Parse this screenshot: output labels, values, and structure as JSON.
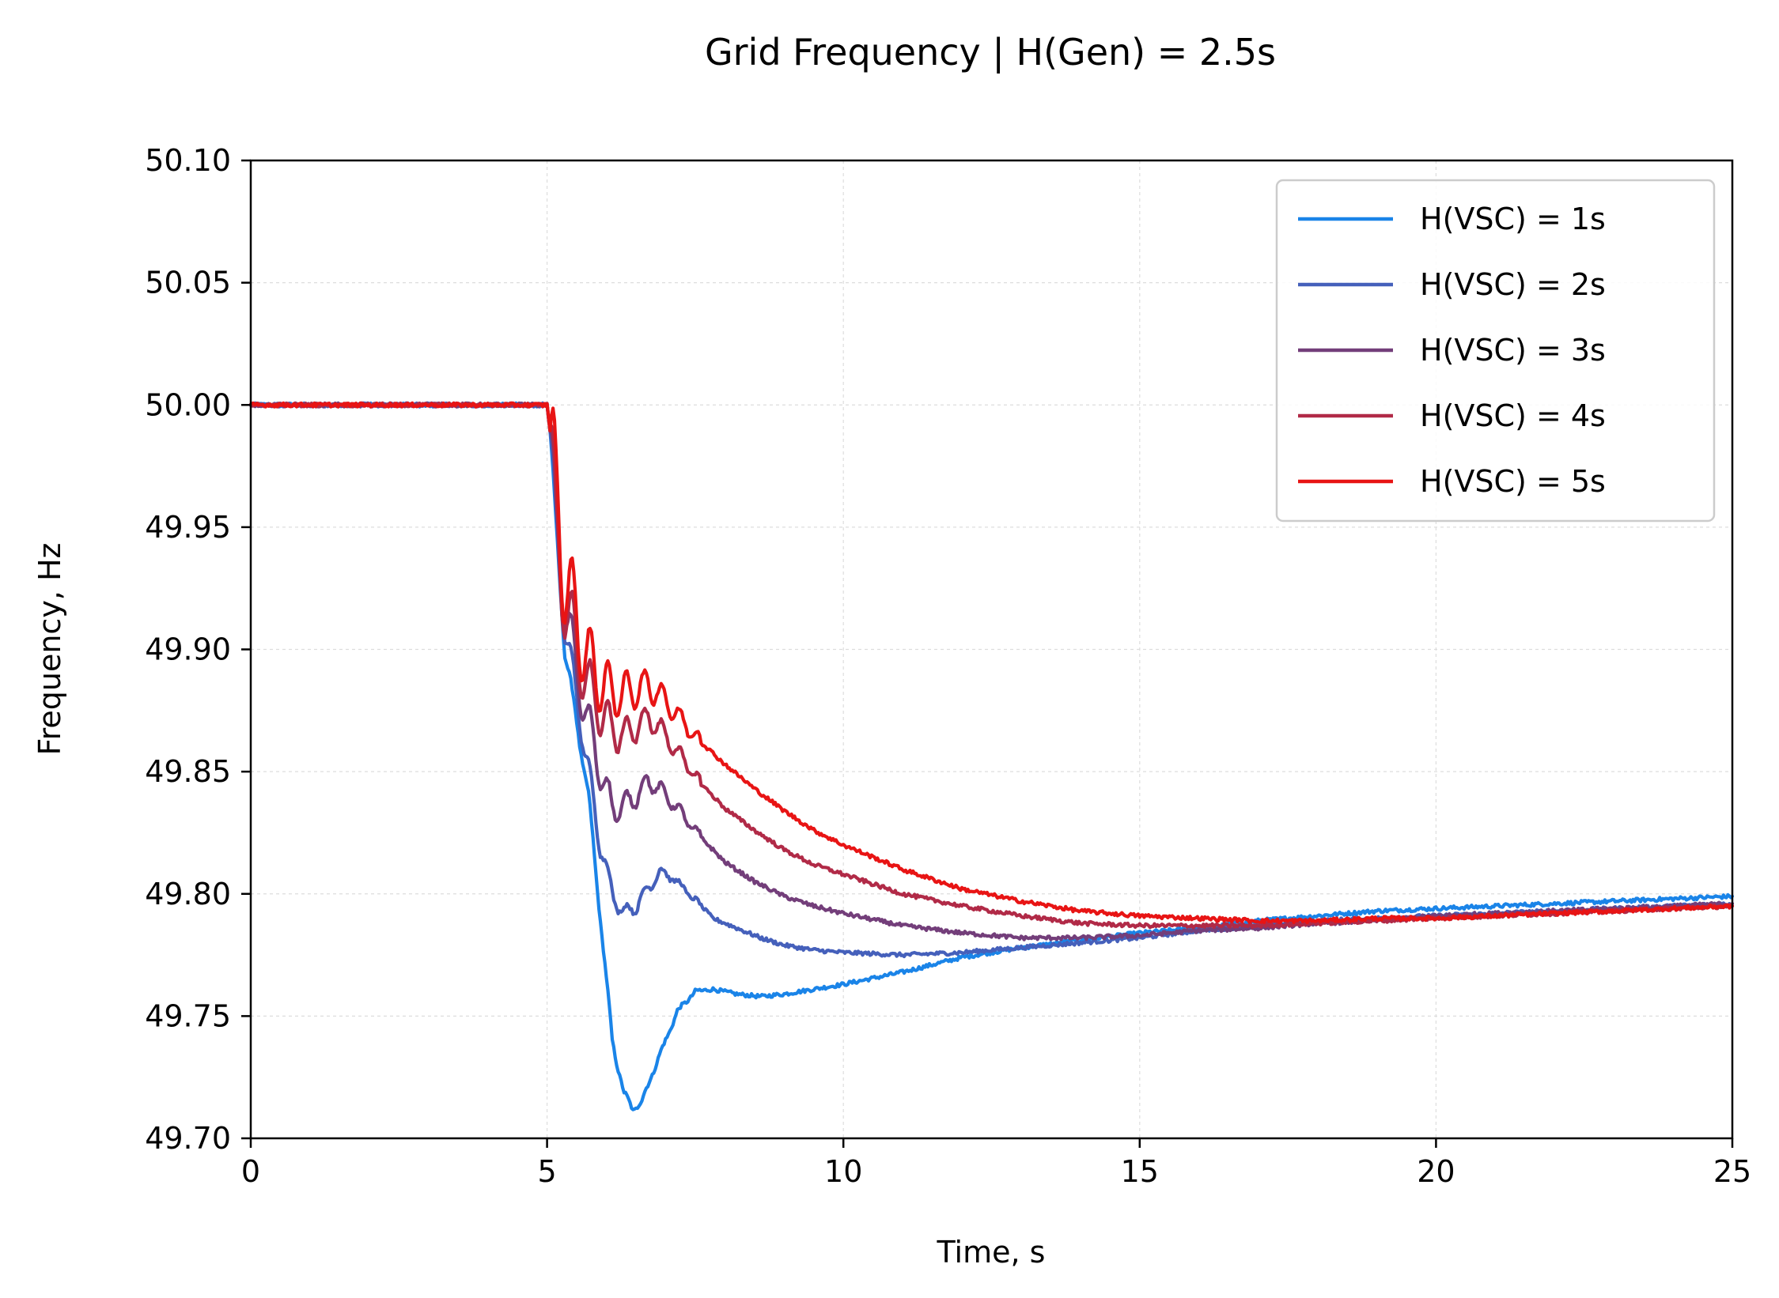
{
  "chart_data": {
    "type": "line",
    "title": "Grid Frequency  |  H(Gen) = 2.5s",
    "xlabel": "Time, s",
    "ylabel": "Frequency, Hz",
    "xlim": [
      0,
      25
    ],
    "ylim": [
      49.7,
      50.1
    ],
    "x_ticks": [
      0,
      5,
      10,
      15,
      20,
      25
    ],
    "x_tick_labels": [
      "0",
      "5",
      "10",
      "15",
      "20",
      "25"
    ],
    "y_ticks": [
      49.7,
      49.75,
      49.8,
      49.85,
      49.9,
      49.95,
      50.0,
      50.05,
      50.1
    ],
    "y_tick_labels": [
      "49.70",
      "49.75",
      "49.80",
      "49.85",
      "49.90",
      "49.95",
      "50.00",
      "50.05",
      "50.10"
    ],
    "grid": true,
    "legend_position": "top-right",
    "series": [
      {
        "name": "H(VSC) = 1s",
        "color": "#1a84e8",
        "x": [
          0,
          1,
          2,
          3,
          4,
          5,
          5.05,
          5.15,
          5.3,
          5.5,
          5.7,
          5.9,
          6.1,
          6.3,
          6.45,
          6.6,
          6.8,
          7.0,
          7.2,
          7.5,
          7.8,
          8.2,
          8.6,
          9.0,
          9.5,
          10,
          11,
          12,
          13,
          14,
          15,
          16,
          17,
          18,
          19,
          20,
          21,
          22,
          23,
          24,
          25
        ],
        "y": [
          50.0,
          50.0,
          50.0,
          50.0,
          50.0,
          50.0,
          49.99,
          49.95,
          49.9,
          49.87,
          49.84,
          49.79,
          49.74,
          49.718,
          49.712,
          49.715,
          49.728,
          49.74,
          49.752,
          49.76,
          49.761,
          49.759,
          49.758,
          49.759,
          49.761,
          49.763,
          49.768,
          49.774,
          49.778,
          49.781,
          49.784,
          49.786,
          49.789,
          49.791,
          49.793,
          49.794,
          49.795,
          49.796,
          49.797,
          49.798,
          49.799
        ]
      },
      {
        "name": "H(VSC) = 2s",
        "color": "#4560bb",
        "x": [
          0,
          1,
          2,
          3,
          4,
          5,
          5.05,
          5.15,
          5.3,
          5.5,
          5.7,
          5.9,
          6.1,
          6.3,
          6.5,
          6.7,
          6.9,
          7.1,
          7.4,
          7.8,
          8.2,
          8.6,
          9.0,
          9.5,
          10,
          11,
          12,
          13,
          14,
          15,
          16,
          17,
          18,
          19,
          20,
          21,
          22,
          23,
          24,
          25
        ],
        "y": [
          50.0,
          50.0,
          50.0,
          50.0,
          50.0,
          50.0,
          49.99,
          49.95,
          49.91,
          49.88,
          49.85,
          49.82,
          49.8,
          49.792,
          49.795,
          49.802,
          49.809,
          49.807,
          49.8,
          49.79,
          49.786,
          49.782,
          49.779,
          49.777,
          49.776,
          49.775,
          49.776,
          49.778,
          49.78,
          49.782,
          49.785,
          49.787,
          49.789,
          49.79,
          49.791,
          49.792,
          49.793,
          49.794,
          49.795,
          49.796
        ]
      },
      {
        "name": "H(VSC) = 3s",
        "color": "#733e7a",
        "x": [
          0,
          1,
          2,
          3,
          4,
          5,
          5.05,
          5.15,
          5.3,
          5.5,
          5.7,
          5.9,
          6.1,
          6.3,
          6.5,
          6.7,
          6.9,
          7.2,
          7.6,
          8.0,
          8.5,
          9.0,
          9.5,
          10,
          11,
          12,
          13,
          14,
          15,
          16,
          17,
          18,
          19,
          20,
          21,
          22,
          23,
          24,
          25
        ],
        "y": [
          50.0,
          50.0,
          50.0,
          50.0,
          50.0,
          50.0,
          49.99,
          49.95,
          49.92,
          49.89,
          49.87,
          49.85,
          49.835,
          49.836,
          49.84,
          49.846,
          49.843,
          49.835,
          49.823,
          49.813,
          49.805,
          49.799,
          49.795,
          49.792,
          49.787,
          49.784,
          49.782,
          49.782,
          49.783,
          49.785,
          49.786,
          49.788,
          49.789,
          49.791,
          49.792,
          49.793,
          49.794,
          49.795,
          49.796
        ]
      },
      {
        "name": "H(VSC) = 4s",
        "color": "#b12a47",
        "x": [
          0,
          1,
          2,
          3,
          4,
          5,
          5.05,
          5.15,
          5.3,
          5.5,
          5.7,
          5.9,
          6.1,
          6.3,
          6.5,
          6.7,
          6.9,
          7.2,
          7.6,
          8.0,
          8.5,
          9.0,
          9.5,
          10,
          11,
          12,
          13,
          14,
          15,
          16,
          17,
          18,
          19,
          20,
          21,
          22,
          23,
          24,
          25
        ],
        "y": [
          50.0,
          50.0,
          50.0,
          50.0,
          50.0,
          50.0,
          49.99,
          49.95,
          49.92,
          49.9,
          49.885,
          49.875,
          49.867,
          49.865,
          49.868,
          49.872,
          49.868,
          49.858,
          49.845,
          49.835,
          49.826,
          49.818,
          49.812,
          49.808,
          49.8,
          49.795,
          49.791,
          49.788,
          49.787,
          49.787,
          49.787,
          49.788,
          49.789,
          49.79,
          49.791,
          49.792,
          49.793,
          49.794,
          49.795
        ]
      },
      {
        "name": "H(VSC) = 5s",
        "color": "#e81414",
        "x": [
          0,
          1,
          2,
          3,
          4,
          5,
          5.05,
          5.15,
          5.3,
          5.5,
          5.7,
          5.9,
          6.1,
          6.3,
          6.5,
          6.7,
          6.9,
          7.2,
          7.6,
          8.0,
          8.5,
          9.0,
          9.5,
          10,
          11,
          12,
          13,
          14,
          15,
          16,
          17,
          18,
          19,
          20,
          21,
          22,
          23,
          24,
          25
        ],
        "y": [
          50.0,
          50.0,
          50.0,
          50.0,
          50.0,
          50.0,
          49.99,
          49.96,
          49.93,
          49.91,
          49.895,
          49.887,
          49.882,
          49.882,
          49.884,
          49.885,
          49.882,
          49.873,
          49.862,
          49.853,
          49.843,
          49.834,
          49.826,
          49.82,
          49.81,
          49.802,
          49.797,
          49.793,
          49.791,
          49.79,
          49.789,
          49.789,
          49.79,
          49.79,
          49.791,
          49.792,
          49.793,
          49.794,
          49.795
        ]
      }
    ]
  }
}
